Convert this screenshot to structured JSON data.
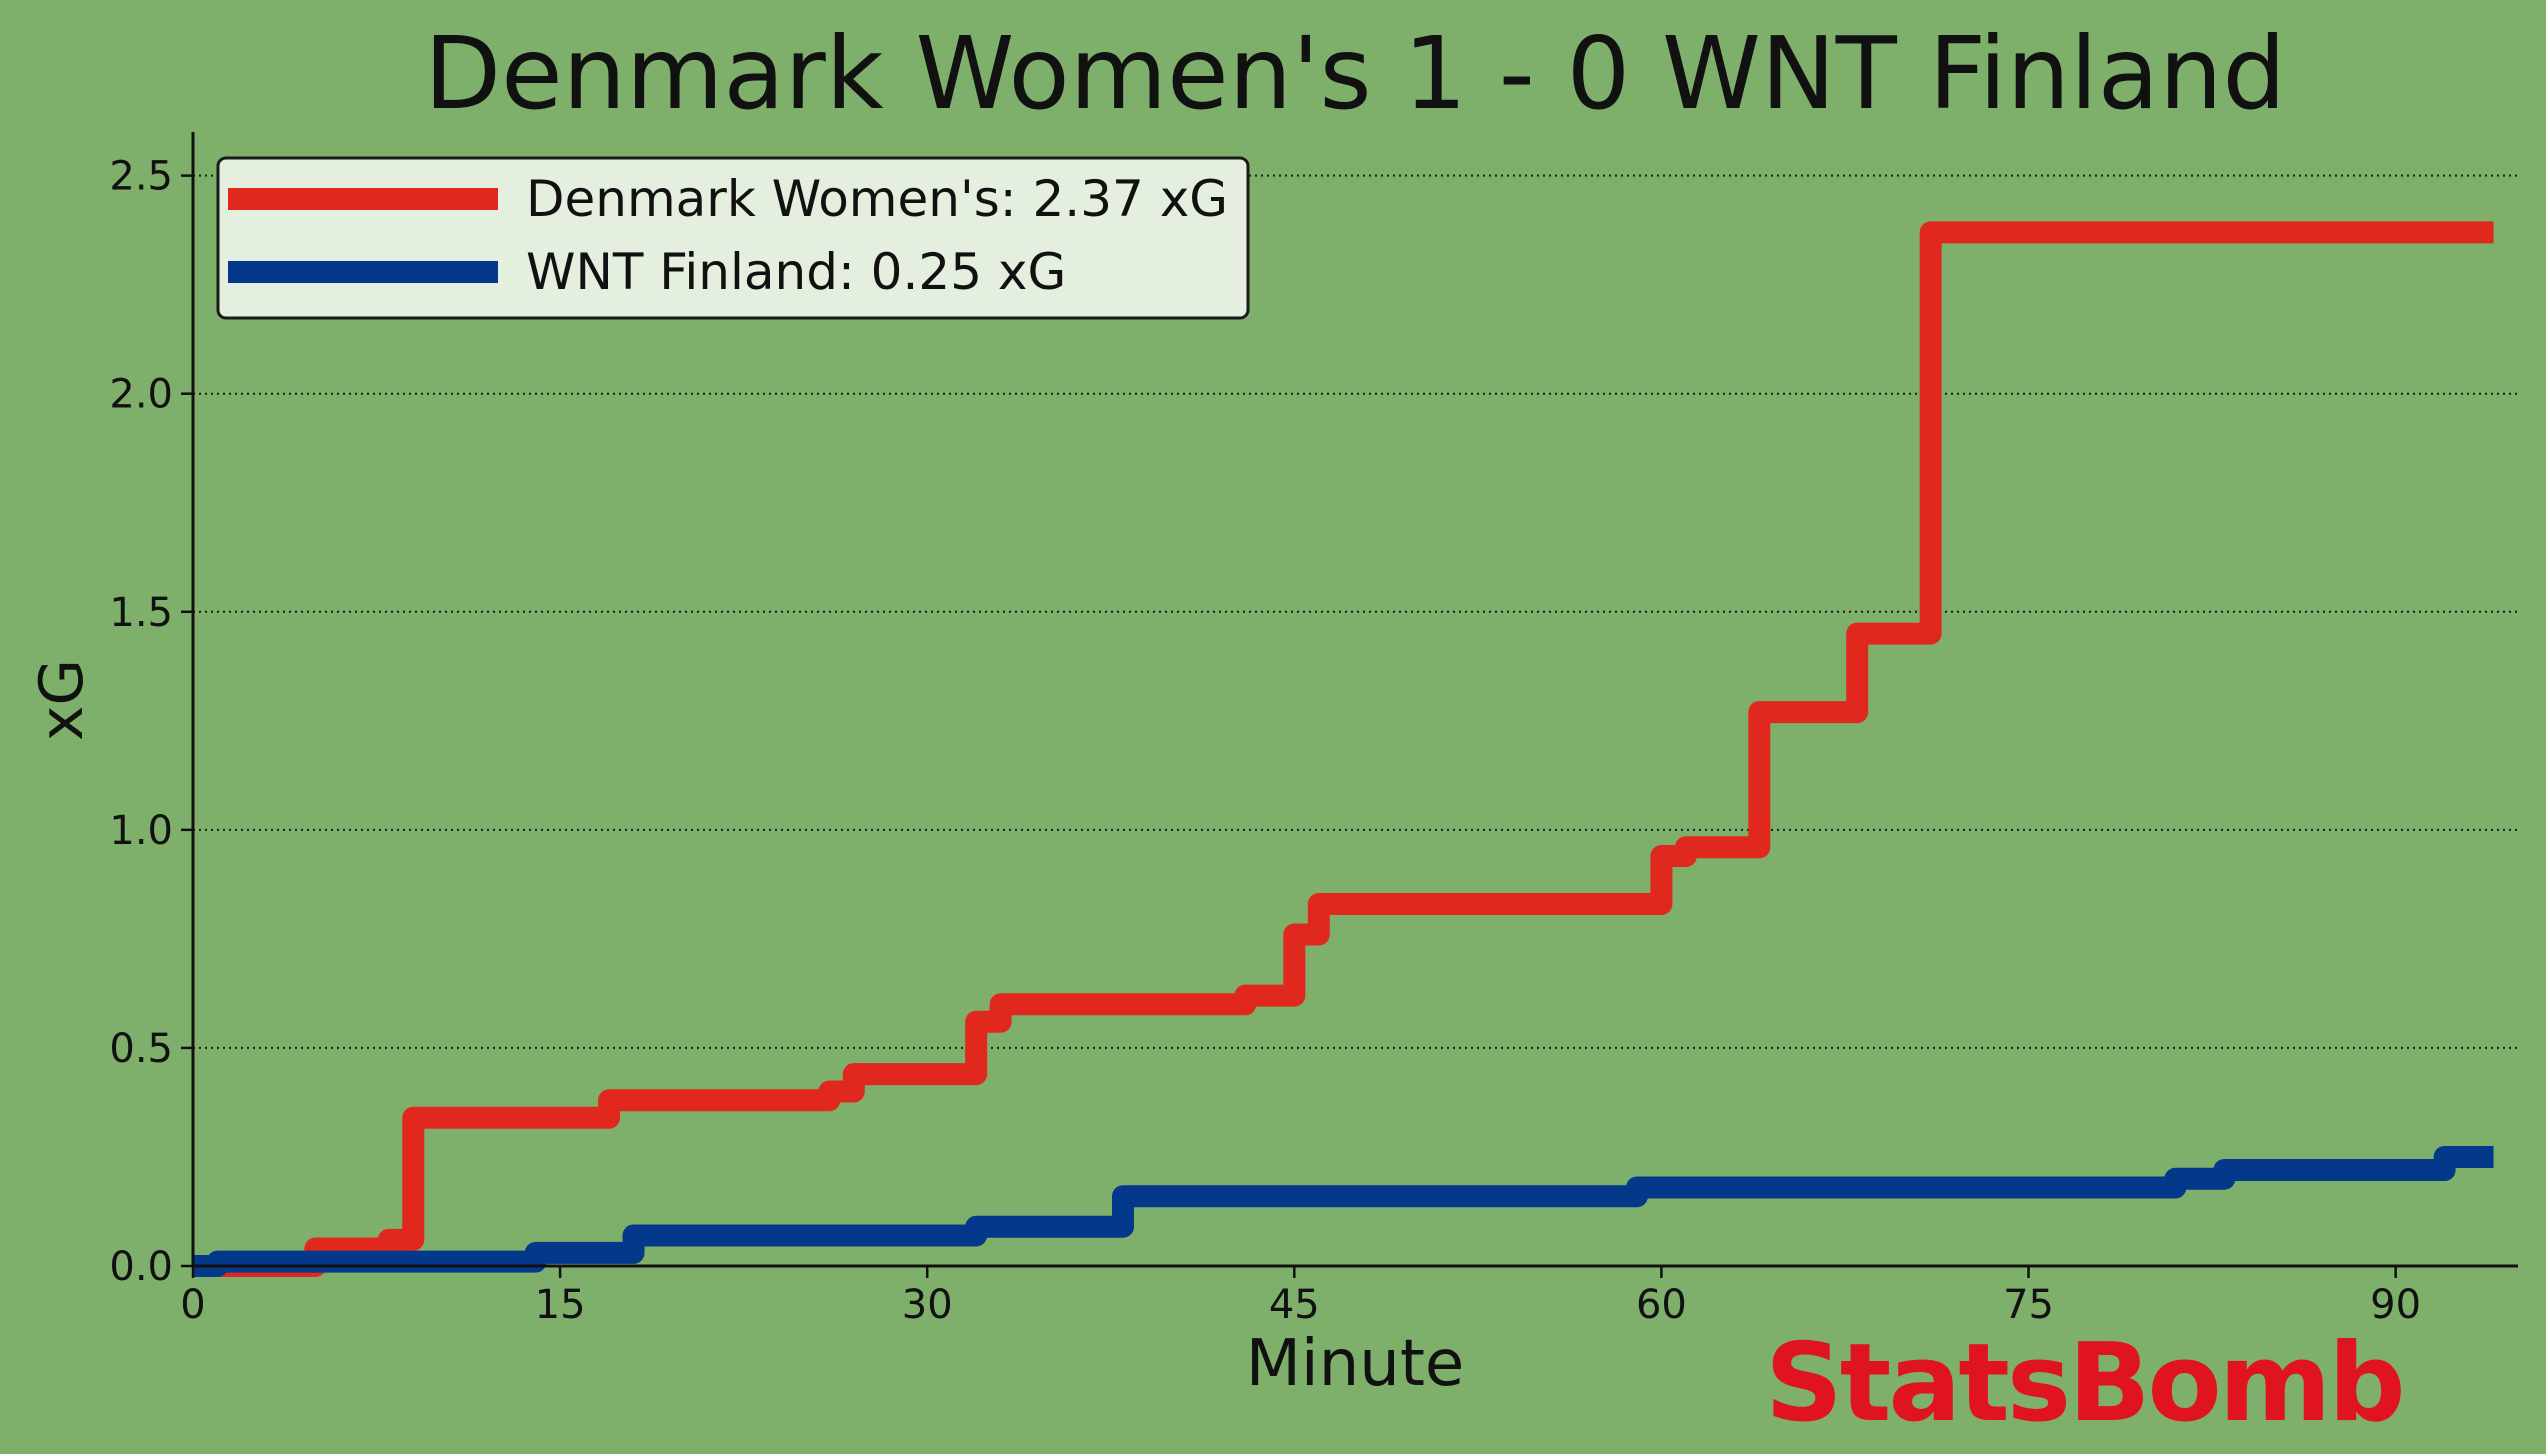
{
  "colors": {
    "background": "#7fb06b",
    "denmark": "#e0281e",
    "finland": "#04388a",
    "legend_bg": "#e5efe0",
    "brand": "#e0141e",
    "axis": "#111111"
  },
  "brand": {
    "text": "StatsBomb"
  },
  "chart_data": {
    "type": "line",
    "step": true,
    "title": "Denmark Women's 1 - 0 WNT Finland",
    "xlabel": "Minute",
    "ylabel": "xG",
    "xlim": [
      0,
      95
    ],
    "ylim": [
      0,
      2.6
    ],
    "xticks": [
      0,
      15,
      30,
      45,
      60,
      75,
      90
    ],
    "yticks": [
      0.0,
      0.5,
      1.0,
      1.5,
      2.0,
      2.5
    ],
    "ytick_labels": [
      "0.0",
      "0.5",
      "1.0",
      "1.5",
      "2.0",
      "2.5"
    ],
    "grid": "y-dotted",
    "legend_position": "top-left",
    "series": [
      {
        "name": "Denmark Women's: 2.37 xG",
        "color": "#e0281e",
        "x": [
          0,
          5,
          8,
          9,
          17,
          26,
          27,
          32,
          33,
          43,
          45,
          46,
          60,
          61,
          64,
          68,
          71,
          94
        ],
        "y": [
          0,
          0.04,
          0.06,
          0.34,
          0.38,
          0.4,
          0.44,
          0.56,
          0.6,
          0.62,
          0.76,
          0.83,
          0.94,
          0.96,
          1.27,
          1.45,
          2.37,
          2.37
        ]
      },
      {
        "name": "WNT Finland: 0.25 xG",
        "color": "#04388a",
        "x": [
          0,
          1,
          14,
          18,
          32,
          38,
          59,
          81,
          83,
          92,
          94
        ],
        "y": [
          0,
          0.01,
          0.03,
          0.07,
          0.09,
          0.16,
          0.18,
          0.2,
          0.22,
          0.25,
          0.25
        ]
      }
    ]
  }
}
